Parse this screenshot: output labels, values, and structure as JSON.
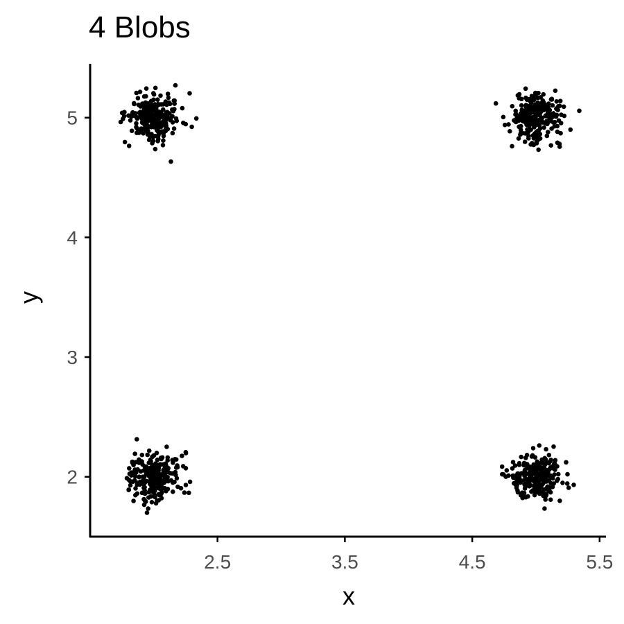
{
  "chart_data": {
    "type": "scatter",
    "title": "4 Blobs",
    "xlabel": "x",
    "ylabel": "y",
    "xlim": [
      1.5,
      5.55
    ],
    "ylim": [
      1.5,
      5.45
    ],
    "x_ticks": [
      {
        "value": 2.5,
        "label": "2.5"
      },
      {
        "value": 3.5,
        "label": "3.5"
      },
      {
        "value": 4.5,
        "label": "4.5"
      },
      {
        "value": 5.5,
        "label": "5.5"
      }
    ],
    "y_ticks": [
      {
        "value": 2,
        "label": "2"
      },
      {
        "value": 3,
        "label": "3"
      },
      {
        "value": 4,
        "label": "4"
      },
      {
        "value": 5,
        "label": "5"
      }
    ],
    "grid": false,
    "legend": "none",
    "point_color": "#000000",
    "clusters": [
      {
        "center": [
          2.0,
          5.0
        ],
        "sd": 0.1,
        "n": 250
      },
      {
        "center": [
          5.0,
          5.0
        ],
        "sd": 0.1,
        "n": 250
      },
      {
        "center": [
          2.0,
          2.0
        ],
        "sd": 0.1,
        "n": 250
      },
      {
        "center": [
          5.0,
          2.0
        ],
        "sd": 0.1,
        "n": 250
      }
    ]
  }
}
